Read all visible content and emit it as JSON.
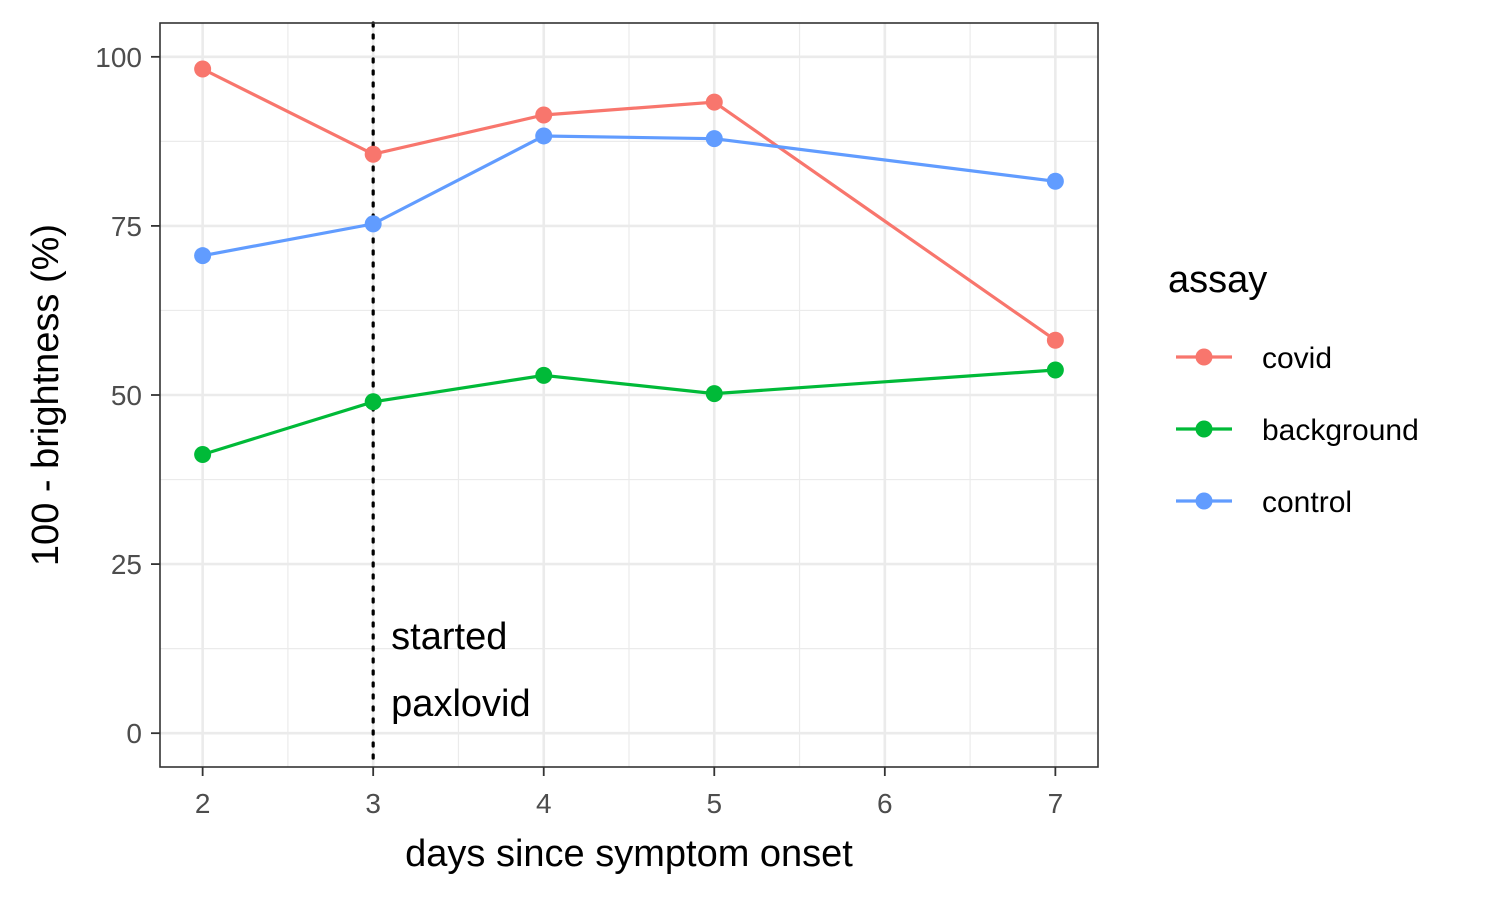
{
  "chart_data": {
    "type": "line",
    "x": [
      2,
      3,
      4,
      5,
      7
    ],
    "series": [
      {
        "name": "covid",
        "color": "#F8766D",
        "values": [
          98.2,
          85.6,
          91.4,
          93.3,
          58.1
        ]
      },
      {
        "name": "background",
        "color": "#00BA38",
        "values": [
          41.2,
          49.0,
          52.9,
          50.2,
          53.7
        ]
      },
      {
        "name": "control",
        "color": "#619CFF",
        "values": [
          70.6,
          75.3,
          88.3,
          87.9,
          81.6
        ]
      }
    ],
    "xlabel": "days since symptom onset",
    "ylabel": "100 - brightness (%)",
    "xlim": [
      1.75,
      7.25
    ],
    "ylim": [
      -5,
      105
    ],
    "xticks": [
      2,
      3,
      4,
      5,
      6,
      7
    ],
    "yticks": [
      0,
      25,
      50,
      75,
      100
    ],
    "grid": true,
    "legend_title": "assay",
    "legend_position": "right",
    "vline": {
      "x": 3,
      "style": "dotted"
    },
    "annotation": {
      "x": 3,
      "lines": [
        "started",
        "paxlovid"
      ]
    }
  }
}
